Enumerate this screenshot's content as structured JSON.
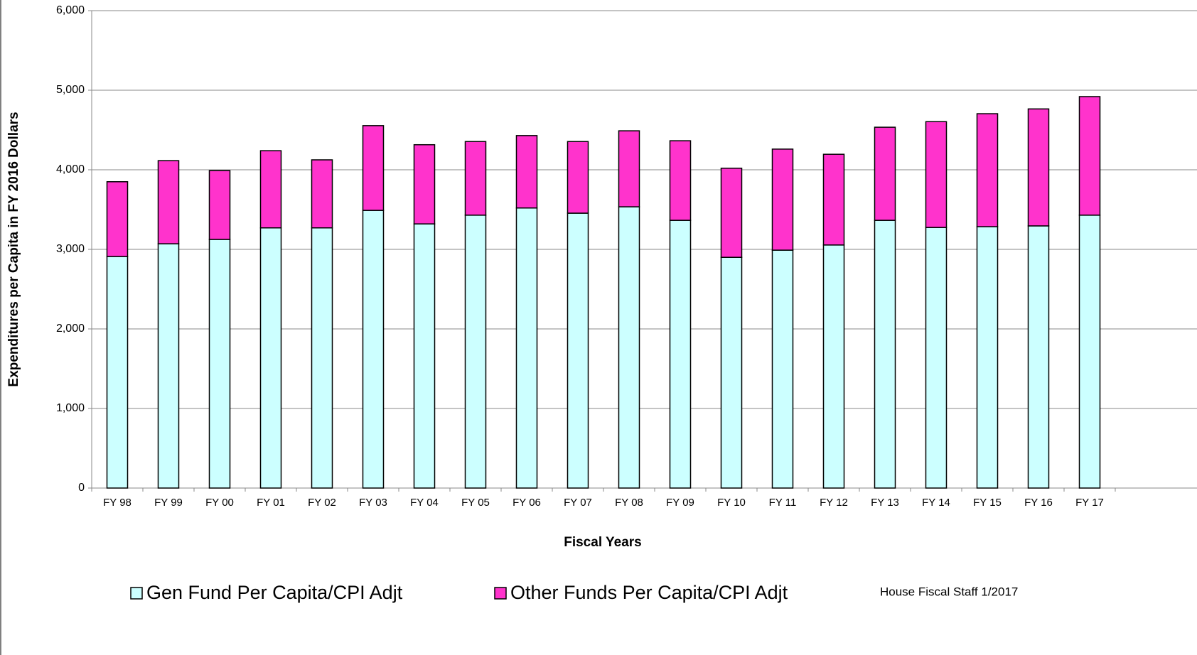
{
  "chart_data": {
    "type": "stacked_bar",
    "y_label": "Expenditures per Capita in FY 2016 Dollars",
    "x_label": "Fiscal Years",
    "annotation": "House Fiscal Staff  1/2017",
    "categories": [
      "FY 98",
      "FY 99",
      "FY 00",
      "FY 01",
      "FY 02",
      "FY 03",
      "FY 04",
      "FY 05",
      "FY 06",
      "FY 07",
      "FY 08",
      "FY 09",
      "FY 10",
      "FY 11",
      "FY 12",
      "FY 13",
      "FY 14",
      "FY 15",
      "FY 16",
      "FY 17"
    ],
    "series": [
      {
        "name": "Gen Fund Per Capita/CPI Adjt",
        "color": "#ccffff",
        "values": [
          2910,
          3070,
          3125,
          3270,
          3270,
          3490,
          3320,
          3430,
          3520,
          3455,
          3535,
          3365,
          2900,
          2990,
          3055,
          3365,
          3275,
          3285,
          3295,
          3430
        ]
      },
      {
        "name": "Other Funds Per Capita/CPI Adjt",
        "color": "#ff33cc",
        "values": [
          940,
          1045,
          865,
          970,
          855,
          1065,
          995,
          925,
          910,
          900,
          955,
          1000,
          1120,
          1270,
          1140,
          1170,
          1330,
          1420,
          1470,
          1490
        ]
      }
    ],
    "ylim": [
      0,
      6000
    ],
    "yticks": [
      0,
      {
        "value": 1000,
        "label": "1,000"
      },
      {
        "value": 2000,
        "label": "2,000"
      },
      {
        "value": 3000,
        "label": "3,000"
      },
      {
        "value": 4000,
        "label": "4,000"
      },
      {
        "value": 5000,
        "label": "5,000"
      },
      {
        "value": 6000,
        "label": "6,000"
      }
    ],
    "grid": true
  }
}
